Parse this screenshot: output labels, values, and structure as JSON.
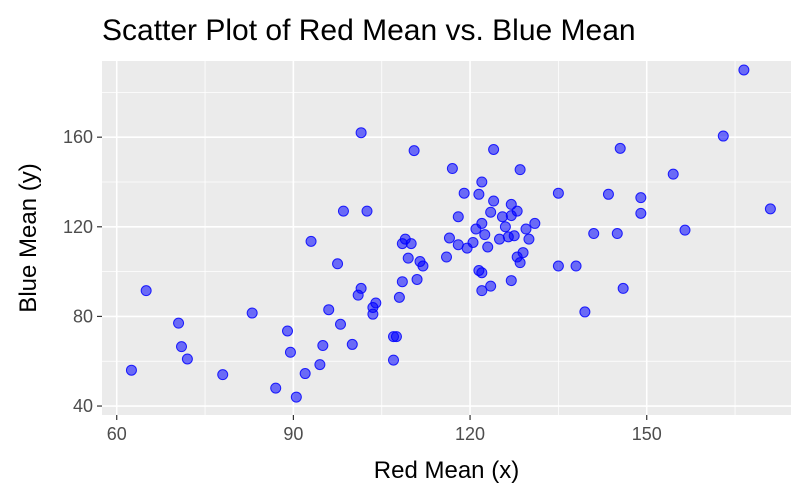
{
  "chart_data": {
    "type": "scatter",
    "title": "Scatter Plot of Red Mean vs. Blue Mean",
    "xlabel": "Red Mean (x)",
    "ylabel": "Blue Mean (y)",
    "xlim": [
      57.5,
      174.5
    ],
    "ylim": [
      36,
      194
    ],
    "x_ticks": [
      60,
      90,
      120,
      150
    ],
    "y_ticks": [
      40,
      80,
      120,
      160
    ],
    "x_tick_labels": [
      "60",
      "90",
      "120",
      "150"
    ],
    "y_tick_labels": [
      "40",
      "80",
      "120",
      "160"
    ],
    "grid": true,
    "point_color": "#0000ff",
    "point_opacity": 0.55,
    "points": [
      [
        62.5,
        56
      ],
      [
        65,
        91.5
      ],
      [
        70.5,
        77
      ],
      [
        71,
        66.5
      ],
      [
        72,
        61
      ],
      [
        78,
        54
      ],
      [
        83,
        81.5
      ],
      [
        87,
        48
      ],
      [
        89,
        73.5
      ],
      [
        89.5,
        64
      ],
      [
        90.5,
        44
      ],
      [
        92,
        54.5
      ],
      [
        93,
        113.5
      ],
      [
        94.5,
        58.5
      ],
      [
        95,
        67
      ],
      [
        96,
        83
      ],
      [
        97.5,
        103.5
      ],
      [
        98,
        76.5
      ],
      [
        98.5,
        127
      ],
      [
        100,
        67.5
      ],
      [
        101,
        89.5
      ],
      [
        101.5,
        92.5
      ],
      [
        101.5,
        162
      ],
      [
        102.5,
        127
      ],
      [
        103.5,
        84
      ],
      [
        103.5,
        81
      ],
      [
        104,
        86
      ],
      [
        107,
        60.5
      ],
      [
        107,
        71
      ],
      [
        107.5,
        71
      ],
      [
        108,
        88.5
      ],
      [
        108.5,
        95.5
      ],
      [
        108.5,
        112.5
      ],
      [
        109,
        114.5
      ],
      [
        109.5,
        106
      ],
      [
        110,
        112.5
      ],
      [
        110.5,
        154
      ],
      [
        111,
        96.5
      ],
      [
        111.5,
        104.5
      ],
      [
        112,
        102.5
      ],
      [
        116,
        106.5
      ],
      [
        116.5,
        115
      ],
      [
        117,
        146
      ],
      [
        118,
        112
      ],
      [
        118,
        124.5
      ],
      [
        119,
        135
      ],
      [
        119.5,
        110.5
      ],
      [
        120.5,
        113
      ],
      [
        121,
        119
      ],
      [
        121.5,
        134.5
      ],
      [
        121.5,
        100.5
      ],
      [
        122,
        140
      ],
      [
        122,
        99.5
      ],
      [
        122,
        91.5
      ],
      [
        122,
        121.5
      ],
      [
        122.5,
        116.5
      ],
      [
        123,
        111
      ],
      [
        123.5,
        126.5
      ],
      [
        123.5,
        93.5
      ],
      [
        124,
        154.5
      ],
      [
        124,
        131.5
      ],
      [
        125,
        114.5
      ],
      [
        125.5,
        124.5
      ],
      [
        126,
        120
      ],
      [
        126.5,
        115.5
      ],
      [
        127,
        125
      ],
      [
        127,
        96
      ],
      [
        127,
        130
      ],
      [
        127.5,
        116
      ],
      [
        128,
        106.5
      ],
      [
        128,
        127
      ],
      [
        128.5,
        145.5
      ],
      [
        128.5,
        104
      ],
      [
        129,
        108.5
      ],
      [
        129.5,
        119
      ],
      [
        130,
        114.5
      ],
      [
        131,
        121.5
      ],
      [
        135,
        102.5
      ],
      [
        135,
        135
      ],
      [
        138,
        102.5
      ],
      [
        139.5,
        82
      ],
      [
        141,
        117
      ],
      [
        143.5,
        134.5
      ],
      [
        145,
        117
      ],
      [
        145.5,
        155
      ],
      [
        146,
        92.5
      ],
      [
        149,
        133
      ],
      [
        149,
        126
      ],
      [
        154.5,
        143.5
      ],
      [
        156.5,
        118.5
      ],
      [
        163,
        160.5
      ],
      [
        166.5,
        190
      ],
      [
        171,
        128
      ]
    ]
  }
}
